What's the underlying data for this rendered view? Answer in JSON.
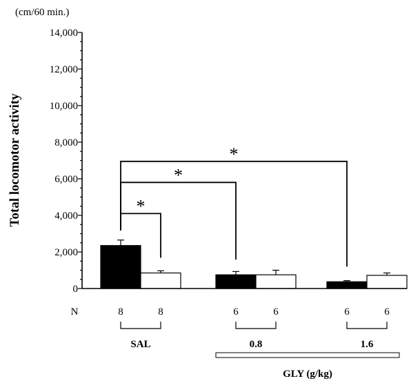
{
  "chart_data": {
    "type": "bar",
    "title": "",
    "ylabel": "Total locomotor activity",
    "yunit": "(cm/60 min.)",
    "ylim": [
      0,
      14000
    ],
    "yticks": [
      0,
      2000,
      4000,
      6000,
      8000,
      10000,
      12000,
      14000
    ],
    "ytick_labels": [
      "0",
      "2,000",
      "4,000",
      "6,000",
      "8,000",
      "10,000",
      "12,000",
      "14,000"
    ],
    "groups": [
      {
        "label": "SAL",
        "bars": [
          {
            "fill": "black",
            "value": 2350,
            "error": 300,
            "n": "8"
          },
          {
            "fill": "white",
            "value": 850,
            "error": 120,
            "n": "8"
          }
        ]
      },
      {
        "label": "0.8",
        "bars": [
          {
            "fill": "black",
            "value": 750,
            "error": 180,
            "n": "6"
          },
          {
            "fill": "white",
            "value": 750,
            "error": 250,
            "n": "6"
          }
        ]
      },
      {
        "label": "1.6",
        "bars": [
          {
            "fill": "black",
            "value": 370,
            "error": 60,
            "n": "6"
          },
          {
            "fill": "white",
            "value": 720,
            "error": 130,
            "n": "6"
          }
        ]
      }
    ],
    "n_label": "N",
    "gly_label": "GLY (g/kg)",
    "significance": [
      {
        "from": "SAL-black",
        "to": "SAL-white",
        "y": 4100,
        "label": "*"
      },
      {
        "from": "SAL-black",
        "to": "0.8-black",
        "y": 5800,
        "label": "*"
      },
      {
        "from": "SAL-black",
        "to": "1.6-black",
        "y": 6950,
        "label": "*"
      }
    ],
    "colors": {
      "black_bar": "#000000",
      "white_bar": "#ffffff",
      "axis": "#000000"
    }
  }
}
